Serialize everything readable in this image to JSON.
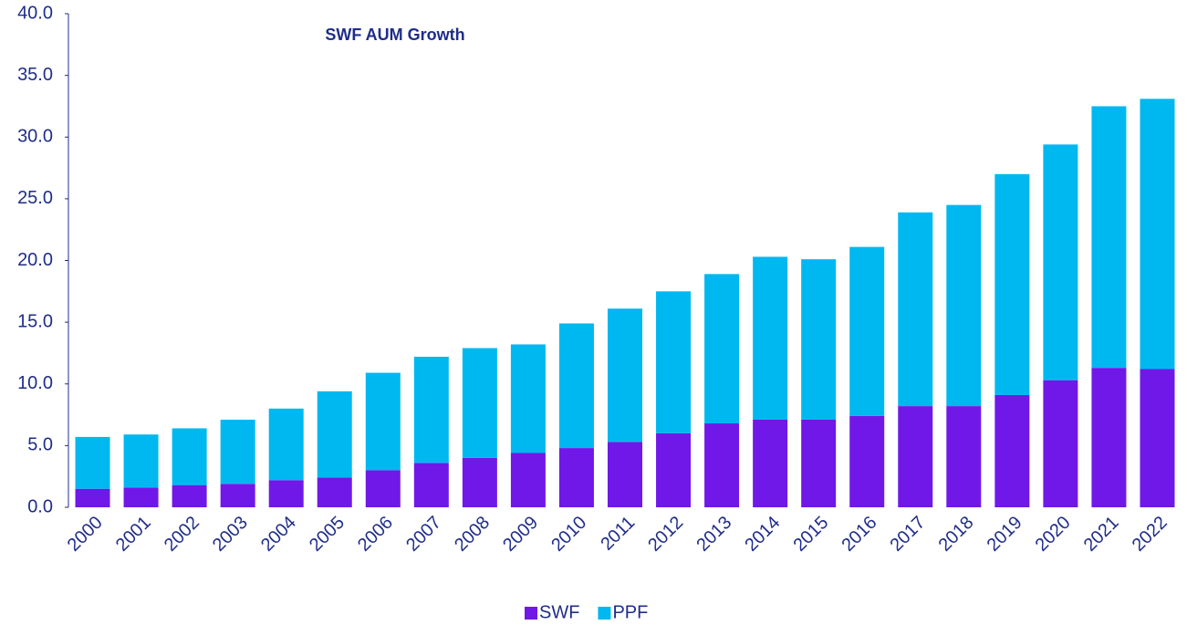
{
  "chart_data": {
    "type": "stacked_bar",
    "title": "SWF AUM Growth",
    "categories": [
      "2000",
      "2001",
      "2002",
      "2003",
      "2004",
      "2005",
      "2006",
      "2007",
      "2008",
      "2009",
      "2010",
      "2011",
      "2012",
      "2013",
      "2014",
      "2015",
      "2016",
      "2017",
      "2018",
      "2019",
      "2020",
      "2021",
      "2022"
    ],
    "series": [
      {
        "name": "SWF",
        "color": "#7018e8",
        "values": [
          1.5,
          1.6,
          1.8,
          1.9,
          2.2,
          2.4,
          3.0,
          3.6,
          4.0,
          4.4,
          4.8,
          5.3,
          6.0,
          6.8,
          7.1,
          7.1,
          7.4,
          8.2,
          8.2,
          9.1,
          10.3,
          11.3,
          11.2
        ]
      },
      {
        "name": "PPF",
        "color": "#00b8f0",
        "values": [
          4.2,
          4.3,
          4.6,
          5.2,
          5.8,
          7.0,
          7.9,
          8.6,
          8.9,
          8.8,
          10.1,
          10.8,
          11.5,
          12.1,
          13.2,
          13.0,
          13.7,
          15.7,
          16.3,
          17.9,
          19.1,
          21.2,
          21.9
        ]
      }
    ],
    "ylim": [
      0,
      40
    ],
    "yticks": [
      {
        "value": 0,
        "label": "0.0"
      },
      {
        "value": 5,
        "label": "5.0"
      },
      {
        "value": 10,
        "label": "10.0"
      },
      {
        "value": 15,
        "label": "15.0"
      },
      {
        "value": 20,
        "label": "20.0"
      },
      {
        "value": 25,
        "label": "25.0"
      },
      {
        "value": 30,
        "label": "30.0"
      },
      {
        "value": 35,
        "label": "35.0"
      },
      {
        "value": 40,
        "label": "40.0"
      }
    ],
    "legend": "bottom"
  }
}
